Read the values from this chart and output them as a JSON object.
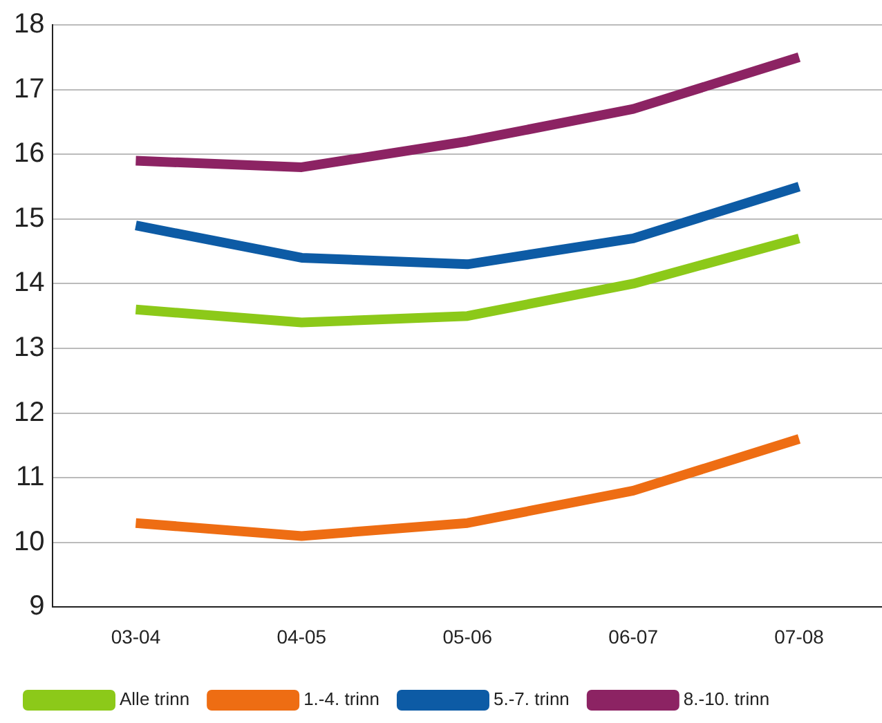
{
  "chart_data": {
    "type": "line",
    "categories": [
      "03-04",
      "04-05",
      "05-06",
      "06-07",
      "07-08"
    ],
    "series": [
      {
        "name": "Alle trinn",
        "color": "#8cc919",
        "values": [
          13.6,
          13.4,
          13.5,
          14.0,
          14.7
        ]
      },
      {
        "name": "1.-4. trinn",
        "color": "#ee6d13",
        "values": [
          10.3,
          10.1,
          10.3,
          10.8,
          11.6
        ]
      },
      {
        "name": "5.-7. trinn",
        "color": "#0d5ba5",
        "values": [
          14.9,
          14.4,
          14.3,
          14.7,
          15.5
        ]
      },
      {
        "name": "8.-10. trinn",
        "color": "#8c2363",
        "values": [
          15.9,
          15.8,
          16.2,
          16.7,
          17.5
        ]
      }
    ],
    "ylim": [
      9,
      18
    ],
    "yticks": [
      9,
      10,
      11,
      12,
      13,
      14,
      15,
      16,
      17,
      18
    ],
    "grid": "y",
    "legend": "bottom",
    "marker": "none",
    "line_style": "solid"
  }
}
